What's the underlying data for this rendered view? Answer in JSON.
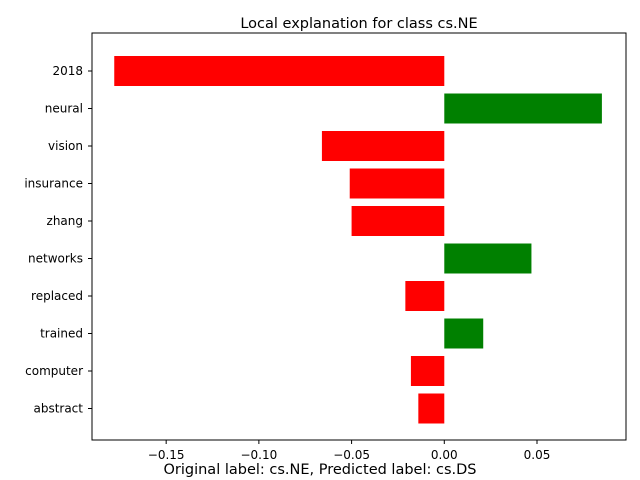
{
  "chart_data": {
    "type": "bar",
    "orientation": "horizontal",
    "title": "Local explanation for class cs.NE",
    "caption": "Original label: cs.NE, Predicted label: cs.DS",
    "categories": [
      "2018",
      "neural",
      "vision",
      "insurance",
      "zhang",
      "networks",
      "replaced",
      "trained",
      "computer",
      "abstract"
    ],
    "values": [
      -0.178,
      0.085,
      -0.066,
      -0.051,
      -0.05,
      0.047,
      -0.021,
      0.021,
      -0.018,
      -0.014
    ],
    "xlim": [
      -0.19,
      0.098
    ],
    "xticks": [
      -0.15,
      -0.1,
      -0.05,
      0.0,
      0.05
    ],
    "xtick_labels": [
      "−0.15",
      "−0.10",
      "−0.05",
      "0.00",
      "0.05"
    ],
    "colors": {
      "positive": "#008000",
      "negative": "#ff0000"
    },
    "grid": false,
    "xlabel": "",
    "ylabel": ""
  }
}
